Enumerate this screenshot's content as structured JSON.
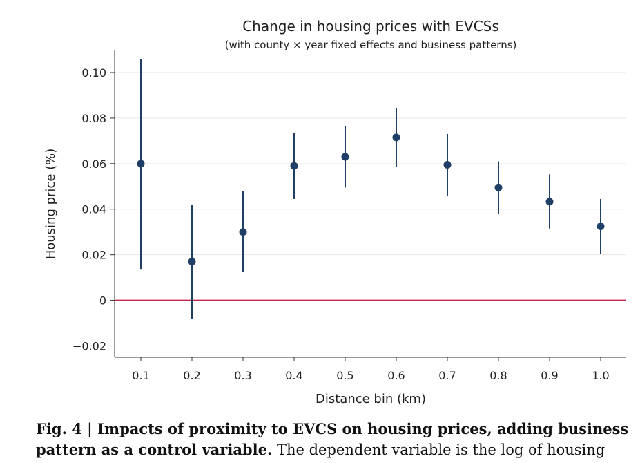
{
  "chart_data": {
    "type": "scatter",
    "title": "Change in housing prices with EVCSs",
    "subtitle": "(with county × year fixed effects and business patterns)",
    "xlabel": "Distance bin (km)",
    "ylabel": "Housing price (%)",
    "x_tick_labels": [
      "0.1",
      "0.2",
      "0.3",
      "0.4",
      "0.5",
      "0.6",
      "0.7",
      "0.8",
      "0.9",
      "1.0"
    ],
    "y_ticks": [
      -0.02,
      0,
      0.02,
      0.04,
      0.06,
      0.08,
      0.1
    ],
    "y_tick_labels": [
      "−0.02",
      "0",
      "0.02",
      "0.04",
      "0.06",
      "0.08",
      "0.10"
    ],
    "ylim": [
      -0.025,
      0.11
    ],
    "grid": true,
    "reference_line": 0,
    "series": [
      {
        "x": [
          0.1,
          0.2,
          0.3,
          0.4,
          0.5,
          0.6,
          0.7,
          0.8,
          0.9,
          1.0
        ],
        "y": [
          0.06,
          0.017,
          0.03,
          0.059,
          0.063,
          0.0715,
          0.0595,
          0.0495,
          0.0433,
          0.0325
        ],
        "ci_low": [
          0.0138,
          -0.008,
          0.0125,
          0.0445,
          0.0495,
          0.0585,
          0.046,
          0.038,
          0.0315,
          0.0205
        ],
        "ci_high": [
          0.106,
          0.042,
          0.048,
          0.0735,
          0.0765,
          0.0845,
          0.073,
          0.061,
          0.0553,
          0.0445
        ]
      }
    ],
    "colors": {
      "points": "#1f3f66",
      "zero_line": "#c0264a",
      "grid": "#e6e6e6"
    }
  },
  "caption": {
    "bold": "Fig. 4 | Impacts of proximity to EVCS on housing prices, adding business pattern as a control variable.",
    "text": "The dependent variable is the log of housing"
  }
}
